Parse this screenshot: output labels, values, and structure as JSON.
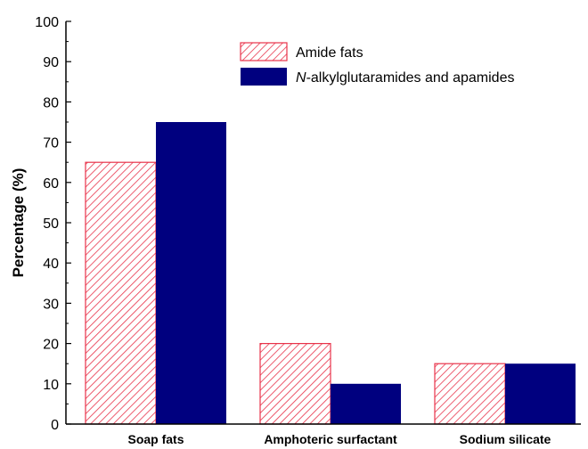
{
  "chart_data": {
    "type": "bar",
    "categories": [
      "Soap fats",
      "Amphoteric surfactant",
      "Sodium silicate"
    ],
    "series": [
      {
        "name": "Amide fats",
        "name_prefix": "",
        "name_suffix": "",
        "values": [
          65,
          20,
          15
        ],
        "color": "#e8334a",
        "fill": "hatched"
      },
      {
        "name": "N-alkylglutaramides and apamides",
        "name_prefix": "N",
        "name_suffix": "-alkylglutaramides and apamides",
        "values": [
          75,
          10,
          15
        ],
        "color": "#00007f",
        "fill": "solid"
      }
    ],
    "xlabel": "",
    "ylabel": "Percentage (%)",
    "ylim": [
      0,
      100
    ],
    "yticks": [
      0,
      10,
      20,
      30,
      40,
      50,
      60,
      70,
      80,
      90,
      100
    ],
    "grid": false,
    "legend": "top-right"
  }
}
